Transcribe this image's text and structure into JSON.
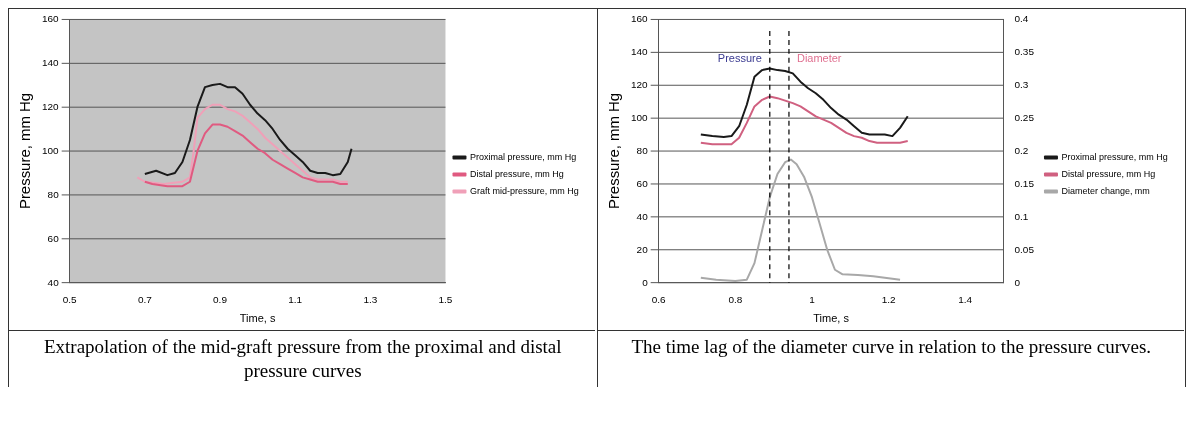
{
  "chart_data": [
    {
      "type": "line",
      "xlabel": "Time, s",
      "ylabel": "Pressure, mm Hg",
      "xlim": [
        0.5,
        1.5
      ],
      "xticks": [
        0.5,
        0.7,
        0.9,
        1.1,
        1.3,
        1.5
      ],
      "ylim": [
        40,
        160
      ],
      "yticks": [
        40,
        60,
        80,
        100,
        120,
        140,
        160
      ],
      "grid": "y",
      "legend": "right",
      "annotations": [
        "Extrapolation of the mid-graft pressure from the proximal and distal pressure curves"
      ],
      "series": [
        {
          "name": "Proximal pressure, mm Hg",
          "color": "#1a1a1a",
          "x": [
            0.7,
            0.73,
            0.76,
            0.78,
            0.8,
            0.82,
            0.84,
            0.86,
            0.88,
            0.9,
            0.92,
            0.94,
            0.96,
            0.98,
            1.0,
            1.02,
            1.04,
            1.06,
            1.08,
            1.1,
            1.12,
            1.14,
            1.16,
            1.18,
            1.2,
            1.22,
            1.24,
            1.25
          ],
          "values": [
            89.5,
            91,
            89,
            90,
            95,
            105,
            120,
            129,
            130,
            130.5,
            129,
            129,
            126,
            121,
            117,
            114,
            110,
            105,
            101,
            98,
            95,
            91,
            90,
            90,
            89,
            89.5,
            95,
            101
          ]
        },
        {
          "name": "Distal pressure, mm Hg",
          "color": "#e05a80",
          "x": [
            0.7,
            0.72,
            0.76,
            0.8,
            0.82,
            0.84,
            0.86,
            0.88,
            0.9,
            0.92,
            0.94,
            0.96,
            0.98,
            1.0,
            1.02,
            1.04,
            1.06,
            1.08,
            1.1,
            1.12,
            1.14,
            1.16,
            1.18,
            1.2,
            1.22,
            1.24
          ],
          "values": [
            86,
            85,
            84,
            84,
            86,
            100,
            108,
            112,
            112,
            111,
            109,
            107,
            104,
            101,
            99,
            96,
            94,
            92,
            90,
            88,
            87,
            86,
            86,
            86,
            85,
            85
          ]
        },
        {
          "name": "Graft mid-pressure, mm Hg",
          "color": "#f0a0b8",
          "x": [
            0.68,
            0.7,
            0.75,
            0.8,
            0.82,
            0.83,
            0.84,
            0.86,
            0.88,
            0.9,
            0.92,
            0.94,
            0.96,
            0.98,
            1.0,
            1.02,
            1.04,
            1.06,
            1.08,
            1.1,
            1.12,
            1.14,
            1.16,
            1.18,
            1.2,
            1.22,
            1.24
          ],
          "values": [
            88,
            86,
            85,
            86,
            88,
            100,
            115,
            119,
            121,
            121,
            119,
            118,
            116,
            113,
            110,
            106,
            103,
            100,
            97,
            94,
            91,
            88,
            87,
            87,
            87,
            86,
            86
          ]
        }
      ]
    },
    {
      "type": "line",
      "xlabel": "Time, s",
      "ylabel": "Pressure, mm Hg",
      "xlim": [
        0.6,
        1.5
      ],
      "xticks": [
        0.6,
        0.8,
        1,
        1.2,
        1.4
      ],
      "ylim": [
        0,
        160
      ],
      "yticks": [
        0,
        20,
        40,
        60,
        80,
        100,
        120,
        140,
        160
      ],
      "y2lim": [
        0,
        0.4
      ],
      "y2ticks": [
        0,
        0.05,
        0.1,
        0.15,
        0.2,
        0.25,
        0.3,
        0.35,
        0.4
      ],
      "grid": "y",
      "legend": "right",
      "ref_lines": [
        {
          "axis": "x",
          "value": 0.89,
          "line_style": "dashed",
          "color": "#000000"
        },
        {
          "axis": "x",
          "value": 0.94,
          "line_style": "dashed",
          "color": "#000000"
        }
      ],
      "annotations": [
        "Pressure",
        "Diameter",
        "The time lag of the diameter curve in relation to the pressure curves."
      ],
      "series": [
        {
          "name": "Proximal pressure, mm Hg",
          "color": "#1a1a1a",
          "x": [
            0.71,
            0.74,
            0.77,
            0.79,
            0.81,
            0.83,
            0.85,
            0.87,
            0.89,
            0.91,
            0.93,
            0.95,
            0.97,
            0.99,
            1.01,
            1.03,
            1.05,
            1.07,
            1.09,
            1.11,
            1.13,
            1.15,
            1.17,
            1.19,
            1.21,
            1.23,
            1.25
          ],
          "values": [
            90,
            89,
            88.5,
            89,
            95,
            108,
            125,
            129,
            130,
            129,
            128.5,
            127,
            122,
            118,
            115,
            111,
            106,
            102,
            99,
            95,
            91,
            90,
            90,
            90,
            89,
            94,
            101
          ]
        },
        {
          "name": "Distal pressure, mm Hg",
          "color": "#d06080",
          "x": [
            0.71,
            0.74,
            0.77,
            0.79,
            0.81,
            0.83,
            0.85,
            0.87,
            0.89,
            0.91,
            0.93,
            0.95,
            0.97,
            0.99,
            1.01,
            1.03,
            1.05,
            1.07,
            1.09,
            1.11,
            1.13,
            1.15,
            1.17,
            1.19,
            1.21,
            1.23,
            1.25
          ],
          "values": [
            85,
            84,
            84,
            84,
            88,
            97,
            107,
            111,
            113,
            112,
            110.5,
            109,
            107,
            104,
            101,
            99,
            97,
            94,
            91,
            89,
            88,
            86,
            85,
            85,
            85,
            85,
            86
          ]
        },
        {
          "name": "Diameter change, mm",
          "color": "#a8a8a8",
          "axis": "y2",
          "x": [
            0.71,
            0.75,
            0.8,
            0.83,
            0.85,
            0.87,
            0.89,
            0.91,
            0.93,
            0.945,
            0.96,
            0.98,
            1.0,
            1.02,
            1.04,
            1.06,
            1.08,
            1.12,
            1.16,
            1.2,
            1.23
          ],
          "values": [
            0.008,
            0.005,
            0.003,
            0.005,
            0.03,
            0.08,
            0.13,
            0.165,
            0.183,
            0.187,
            0.18,
            0.16,
            0.13,
            0.09,
            0.05,
            0.02,
            0.013,
            0.012,
            0.01,
            0.007,
            0.005
          ]
        }
      ]
    }
  ]
}
